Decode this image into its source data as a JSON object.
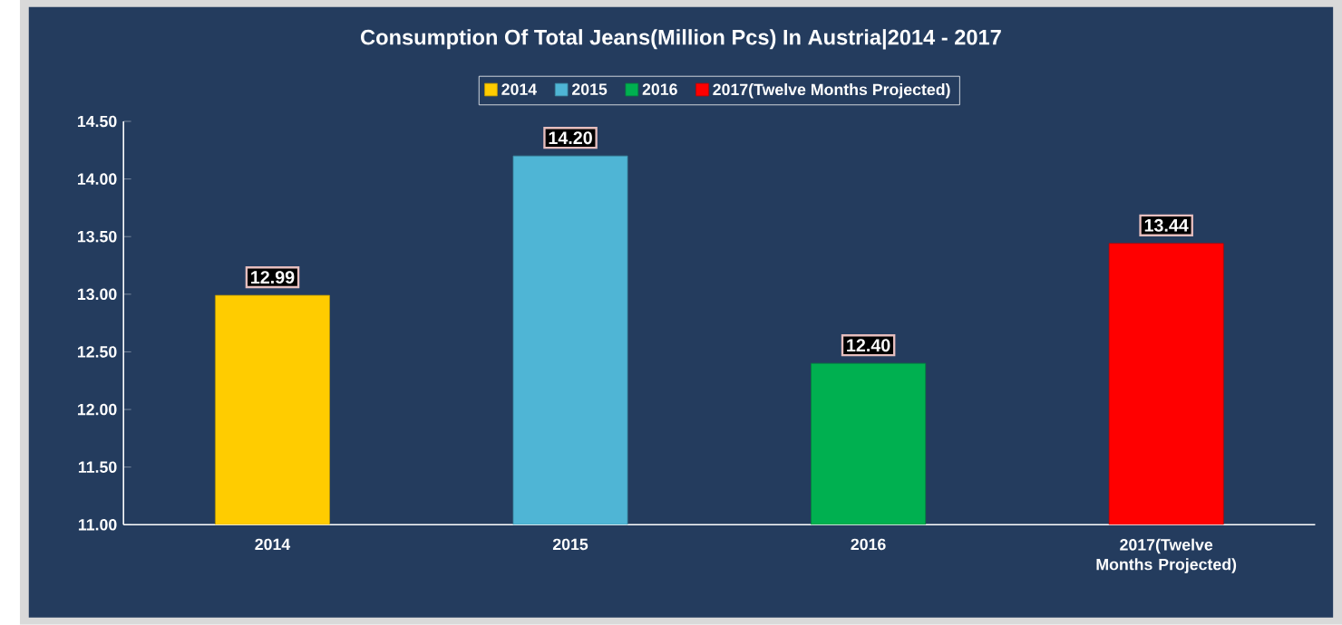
{
  "chart_data": {
    "type": "bar",
    "title": "Consumption Of Total Jeans(Million Pcs) In Austria|2014 - 2017",
    "categories": [
      "2014",
      "2015",
      "2016",
      "2017(Twelve Months Projected)"
    ],
    "series": [
      {
        "name": "2014",
        "color": "#ffcc00",
        "values": [
          12.99,
          null,
          null,
          null
        ],
        "value_labels": [
          "12.99",
          null,
          null,
          null
        ]
      },
      {
        "name": "2015",
        "color": "#4fb5d5",
        "values": [
          null,
          14.2,
          null,
          null
        ],
        "value_labels": [
          null,
          "14.20",
          null,
          null
        ]
      },
      {
        "name": "2016",
        "color": "#00b050",
        "values": [
          null,
          null,
          12.4,
          null
        ],
        "value_labels": [
          null,
          null,
          "12.40",
          null
        ]
      },
      {
        "name": "2017(Twelve Months Projected)",
        "color": "#ff0000",
        "values": [
          null,
          null,
          null,
          13.44
        ],
        "value_labels": [
          null,
          null,
          null,
          "13.44"
        ]
      }
    ],
    "ylim": [
      11,
      14.5
    ],
    "yticks": [
      {
        "value": 11,
        "label": "11.00"
      },
      {
        "value": 11.5,
        "label": "11.50"
      },
      {
        "value": 12,
        "label": "12.00"
      },
      {
        "value": 12.5,
        "label": "12.50"
      },
      {
        "value": 13,
        "label": "13.00"
      },
      {
        "value": 13.5,
        "label": "13.50"
      },
      {
        "value": 14,
        "label": "14.00"
      },
      {
        "value": 14.5,
        "label": "14.50"
      }
    ],
    "grid": false,
    "legend": "top",
    "stacked": true
  }
}
